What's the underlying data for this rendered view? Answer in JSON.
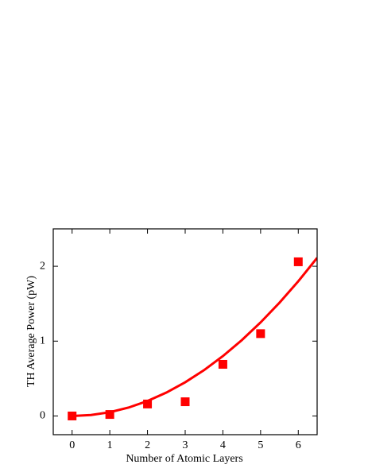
{
  "chart_data": {
    "type": "scatter",
    "xlabel": "Number of Atomic Layers",
    "ylabel": "TH Average Power (pW)",
    "xlim": [
      -0.5,
      6.5
    ],
    "ylim": [
      -0.25,
      2.5
    ],
    "xticks": [
      0,
      1,
      2,
      3,
      4,
      5,
      6
    ],
    "yticks": [
      0,
      1,
      2
    ],
    "series": [
      {
        "type": "scatter",
        "color": "#ff0000",
        "x": [
          0,
          1,
          2,
          3,
          4,
          5,
          6
        ],
        "values": [
          0,
          0.02,
          0.16,
          0.19,
          0.69,
          1.1,
          2.06
        ]
      },
      {
        "type": "line",
        "color": "#ff0000",
        "x": [
          0,
          0.5,
          1,
          1.5,
          2,
          2.5,
          3,
          3.5,
          4,
          4.5,
          5,
          5.5,
          6,
          6.5
        ],
        "values": [
          0,
          0.0125,
          0.05,
          0.1125,
          0.2,
          0.3125,
          0.45,
          0.6125,
          0.8,
          1.0125,
          1.25,
          1.5125,
          1.8,
          2.1125
        ]
      }
    ]
  }
}
